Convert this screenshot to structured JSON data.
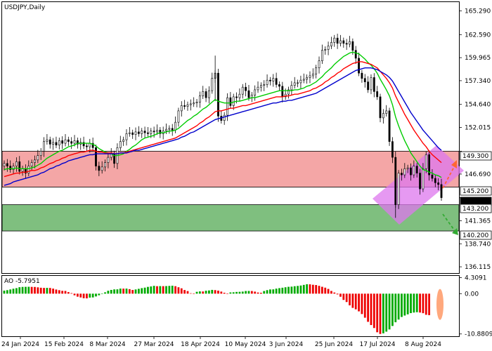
{
  "chart_data": {
    "type": "candlestick",
    "title": "USDJPY,Daily",
    "price_axis": {
      "ylim": [
        135.4,
        166.3
      ],
      "ticks": [
        136.115,
        138.74,
        141.365,
        143.99,
        146.69,
        149.3,
        152.015,
        154.64,
        157.34,
        159.965,
        162.59,
        165.29
      ],
      "tick_labels": [
        "136.115",
        "138.740",
        "141.365",
        "",
        "146.690",
        "",
        "152.015",
        "154.640",
        "157.340",
        "159.965",
        "162.590",
        "165.290"
      ]
    },
    "date_axis": {
      "labels": [
        "24 Jan 2024",
        "15 Feb 2024",
        "8 Mar 2024",
        "27 Mar 2024",
        "18 Apr 2024",
        "10 May 2024",
        "3 Jun 2024",
        "25 Jun 2024",
        "17 Jul 2024",
        "8 Aug 2024"
      ]
    },
    "zones": [
      {
        "name": "resistance",
        "from": 145.2,
        "to": 149.3,
        "color": "#f4a6a6"
      },
      {
        "name": "support",
        "from": 140.2,
        "to": 143.2,
        "color": "#7fbf7f"
      }
    ],
    "level_labels": [
      "149.300",
      "145.200",
      "144.013",
      "143.200",
      "140.200"
    ],
    "current_price": 144.013,
    "close_price_series": [
      147.9,
      147.6,
      147.2,
      147.6,
      148.1,
      147.0,
      147.3,
      146.8,
      147.6,
      148.0,
      148.3,
      148.8,
      149.3,
      150.4,
      150.6,
      150.1,
      150.3,
      150.0,
      150.5,
      150.2,
      150.6,
      150.4,
      150.2,
      150.5,
      150.1,
      150.3,
      149.9,
      149.8,
      150.2,
      149.7,
      147.6,
      147.1,
      147.5,
      148.0,
      148.6,
      149.0,
      147.9,
      149.7,
      150.4,
      150.6,
      151.3,
      151.4,
      151.2,
      151.5,
      151.3,
      151.6,
      151.4,
      151.3,
      151.6,
      151.5,
      151.7,
      151.3,
      151.6,
      151.8,
      151.9,
      151.7,
      152.6,
      153.9,
      154.5,
      154.4,
      154.6,
      154.7,
      154.8,
      154.9,
      155.6,
      156.1,
      155.4,
      156.2,
      157.6,
      158.2,
      153.3,
      152.8,
      153.4,
      155.4,
      154.5,
      155.5,
      155.4,
      155.8,
      156.6,
      156.2,
      155.4,
      155.7,
      156.3,
      156.6,
      156.8,
      156.9,
      157.4,
      157.3,
      157.6,
      156.9,
      156.7,
      155.5,
      155.8,
      156.3,
      156.8,
      157.1,
      157.1,
      157.4,
      157.5,
      157.7,
      157.9,
      158.1,
      158.8,
      159.6,
      160.8,
      160.9,
      161.3,
      161.7,
      162.2,
      161.6,
      161.9,
      161.6,
      161.5,
      161.8,
      160.8,
      159.9,
      158.2,
      157.6,
      157.2,
      156.3,
      157.7,
      156.1,
      155.5,
      153.1,
      153.6,
      153.9,
      150.4,
      148.6,
      143.2,
      146.8,
      146.6,
      147.3,
      147.4,
      146.6,
      147.6,
      146.8,
      145.0,
      147.3,
      148.9,
      146.6,
      146.2,
      145.7,
      145.5,
      144.0
    ],
    "moving_averages": [
      {
        "color": "#00cc00",
        "values": [
          147.2,
          147.3,
          147.3,
          147.3,
          147.4,
          147.3,
          147.3,
          147.3,
          147.3,
          147.4,
          147.5,
          147.7,
          147.9,
          148.2,
          148.5,
          148.7,
          148.9,
          149.1,
          149.3,
          149.4,
          149.6,
          149.8,
          149.9,
          150.0,
          150.2,
          150.2,
          150.2,
          150.2,
          150.2,
          150.1,
          149.9,
          149.6,
          149.4,
          149.2,
          149.1,
          149.0,
          148.8,
          148.8,
          148.9,
          149.0,
          149.3,
          149.5,
          149.8,
          150.0,
          150.3,
          150.6,
          150.8,
          150.9,
          151.0,
          151.1,
          151.3,
          151.4,
          151.4,
          151.5,
          151.6,
          151.6,
          151.7,
          151.9,
          152.2,
          152.5,
          152.8,
          153.0,
          153.3,
          153.5,
          153.8,
          154.1,
          154.3,
          154.6,
          154.9,
          155.2,
          155.0,
          154.9,
          154.8,
          154.8,
          154.8,
          154.9,
          155.0,
          155.0,
          155.1,
          155.2,
          155.3,
          155.4,
          155.4,
          155.5,
          155.6,
          155.7,
          155.8,
          155.9,
          156.0,
          156.1,
          156.2,
          156.2,
          156.2,
          156.2,
          156.2,
          156.3,
          156.3,
          156.4,
          156.5,
          156.7,
          156.8,
          157.0,
          157.2,
          157.5,
          157.8,
          158.2,
          158.5,
          158.8,
          159.2,
          159.5,
          159.8,
          160.1,
          160.3,
          160.5,
          160.6,
          160.5,
          160.4,
          160.1,
          159.8,
          159.4,
          159.1,
          158.7,
          158.2,
          157.5,
          156.9,
          156.3,
          155.6,
          154.6,
          153.2,
          152.2,
          151.3,
          150.5,
          149.8,
          149.1,
          148.6,
          148.1,
          147.6,
          147.2,
          147.1,
          146.9,
          146.8,
          146.6,
          146.5,
          146.3
        ]
      },
      {
        "color": "#ff0000",
        "values": [
          146.4,
          146.5,
          146.6,
          146.7,
          146.8,
          146.8,
          146.9,
          146.9,
          147.0,
          147.1,
          147.1,
          147.2,
          147.4,
          147.5,
          147.7,
          147.9,
          148.0,
          148.2,
          148.3,
          148.5,
          148.6,
          148.8,
          148.9,
          149.0,
          149.1,
          149.2,
          149.2,
          149.3,
          149.4,
          149.4,
          149.3,
          149.2,
          149.2,
          149.1,
          149.1,
          149.1,
          149.0,
          149.0,
          149.1,
          149.1,
          149.2,
          149.3,
          149.4,
          149.5,
          149.6,
          149.7,
          149.8,
          149.9,
          150.0,
          150.1,
          150.2,
          150.3,
          150.4,
          150.5,
          150.6,
          150.7,
          150.8,
          151.0,
          151.2,
          151.4,
          151.6,
          151.8,
          152.0,
          152.2,
          152.5,
          152.7,
          153.0,
          153.2,
          153.5,
          153.8,
          153.9,
          153.9,
          154.0,
          154.1,
          154.2,
          154.2,
          154.3,
          154.4,
          154.5,
          154.5,
          154.6,
          154.7,
          154.8,
          154.9,
          155.0,
          155.1,
          155.2,
          155.3,
          155.4,
          155.5,
          155.5,
          155.5,
          155.6,
          155.6,
          155.7,
          155.8,
          155.8,
          155.9,
          156.0,
          156.1,
          156.2,
          156.4,
          156.5,
          156.7,
          156.9,
          157.2,
          157.4,
          157.7,
          157.9,
          158.2,
          158.4,
          158.7,
          158.9,
          159.1,
          159.3,
          159.4,
          159.5,
          159.5,
          159.4,
          159.3,
          159.2,
          159.0,
          158.8,
          158.4,
          158.0,
          157.6,
          157.1,
          156.5,
          155.6,
          154.9,
          154.2,
          153.5,
          152.9,
          152.3,
          151.7,
          151.2,
          150.7,
          150.2,
          149.8,
          149.3,
          148.9,
          148.6,
          148.3,
          148.0
        ]
      },
      {
        "color": "#0000cc",
        "values": [
          145.4,
          145.5,
          145.6,
          145.8,
          145.9,
          146.0,
          146.1,
          146.2,
          146.3,
          146.4,
          146.5,
          146.6,
          146.8,
          146.9,
          147.1,
          147.3,
          147.4,
          147.6,
          147.7,
          147.9,
          148.0,
          148.2,
          148.3,
          148.4,
          148.5,
          148.6,
          148.7,
          148.8,
          148.9,
          148.9,
          149.0,
          149.0,
          149.0,
          149.0,
          149.0,
          149.0,
          149.0,
          149.0,
          149.1,
          149.1,
          149.1,
          149.2,
          149.3,
          149.4,
          149.4,
          149.5,
          149.6,
          149.7,
          149.8,
          149.9,
          150.0,
          150.1,
          150.2,
          150.3,
          150.4,
          150.5,
          150.6,
          150.7,
          150.9,
          151.0,
          151.2,
          151.4,
          151.5,
          151.7,
          151.9,
          152.1,
          152.3,
          152.5,
          152.7,
          152.9,
          153.0,
          153.1,
          153.2,
          153.3,
          153.4,
          153.5,
          153.6,
          153.7,
          153.8,
          153.9,
          154.0,
          154.1,
          154.2,
          154.3,
          154.4,
          154.5,
          154.6,
          154.7,
          154.8,
          154.8,
          154.9,
          155.0,
          155.0,
          155.1,
          155.1,
          155.2,
          155.3,
          155.4,
          155.5,
          155.6,
          155.7,
          155.8,
          155.9,
          156.1,
          156.3,
          156.5,
          156.7,
          156.9,
          157.1,
          157.3,
          157.5,
          157.7,
          157.9,
          158.1,
          158.3,
          158.5,
          158.6,
          158.7,
          158.8,
          158.8,
          158.8,
          158.7,
          158.6,
          158.4,
          158.2,
          158.0,
          157.7,
          157.3,
          156.7,
          156.1,
          155.5,
          154.9,
          154.3,
          153.7,
          153.2,
          152.7,
          152.2,
          151.7,
          151.3,
          150.9,
          150.5,
          150.1,
          149.7,
          149.4
        ]
      }
    ],
    "channel": {
      "color": "#dd77ee"
    },
    "arrows": [
      {
        "direction": "up",
        "color": "#ff6633"
      },
      {
        "direction": "down",
        "color": "#33aa33"
      }
    ],
    "oscillator": {
      "label": "AO -5.7951",
      "ylim": [
        -11.5,
        4.8
      ],
      "ticks": [
        4.3091,
        0,
        -10.8809
      ],
      "tick_labels": [
        "4.3091",
        "0.00",
        "-10.8809"
      ],
      "up_color": "#00aa00",
      "down_color": "#ee0000",
      "values": [
        0.82,
        0.95,
        1.14,
        1.34,
        1.49,
        1.74,
        1.82,
        1.84,
        1.86,
        1.83,
        1.81,
        1.71,
        1.6,
        1.55,
        1.56,
        1.54,
        1.36,
        1.12,
        0.94,
        0.76,
        0.73,
        0.42,
        0.15,
        -0.44,
        -0.81,
        -1.02,
        -1.23,
        -1.27,
        -1.06,
        -1.02,
        -0.75,
        -0.43,
        -0.05,
        0.36,
        0.79,
        1.01,
        1.15,
        1.17,
        1.37,
        1.36,
        1.37,
        1.22,
        0.99,
        1.14,
        1.31,
        1.49,
        1.63,
        1.83,
        1.95,
        2.11,
        2.02,
        2.04,
        2.03,
        2.05,
        2.1,
        2.15,
        2.02,
        1.73,
        1.44,
        0.98,
        0.7,
        0.12,
        -0.02,
        0.5,
        0.61,
        0.59,
        0.79,
        0.87,
        1.02,
        0.96,
        0.82,
        0.56,
        0.25,
        0.04,
        0.34,
        0.38,
        0.47,
        0.5,
        0.56,
        0.71,
        0.73,
        0.71,
        0.55,
        0.31,
        0.25,
        0.71,
        0.95,
        1.14,
        1.16,
        1.36,
        1.49,
        1.6,
        1.73,
        1.85,
        1.9,
        2.01,
        2.09,
        2.2,
        2.37,
        2.55,
        2.52,
        2.4,
        2.33,
        2.11,
        1.86,
        1.62,
        1.28,
        0.73,
        0.31,
        -0.2,
        -0.83,
        -1.69,
        -2.26,
        -3.15,
        -3.84,
        -4.23,
        -4.78,
        -5.5,
        -6.49,
        -7.6,
        -8.47,
        -9.28,
        -10.42,
        -10.88,
        -10.71,
        -10.26,
        -9.66,
        -8.72,
        -7.72,
        -6.99,
        -6.29,
        -5.91,
        -5.58,
        -5.25,
        -5.1,
        -5.01,
        -5.1,
        -5.27,
        -5.7,
        -5.8
      ]
    }
  }
}
